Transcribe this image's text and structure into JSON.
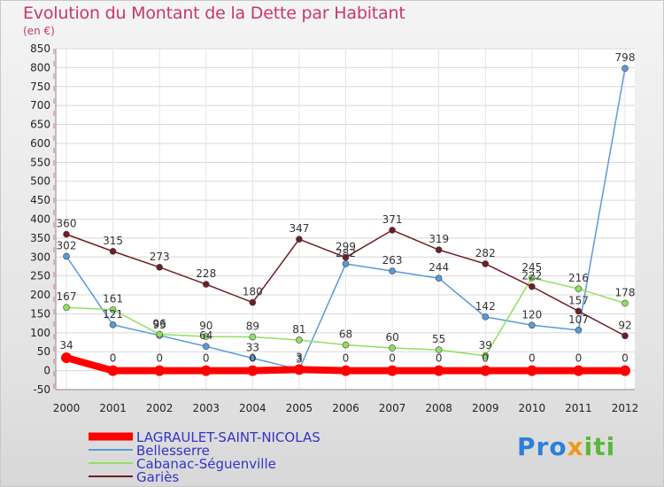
{
  "title": "Evolution du Montant de la Dette par Habitant",
  "unit": "(en €)",
  "brand": [
    "Pro",
    "x",
    "iti"
  ],
  "colors": {
    "title": "#c8376e",
    "legend_text": "#3333cc"
  },
  "chart_data": {
    "type": "line",
    "title": "Evolution du Montant de la Dette par Habitant",
    "ylabel": "(en €)",
    "xlabel": "",
    "x": [
      "2000",
      "2001",
      "2002",
      "2003",
      "2004",
      "2005",
      "2006",
      "2007",
      "2008",
      "2009",
      "2010",
      "2011",
      "2012"
    ],
    "ylim": [
      -50,
      850
    ],
    "yticks": [
      -50,
      0,
      50,
      100,
      150,
      200,
      250,
      300,
      350,
      400,
      450,
      500,
      550,
      600,
      650,
      700,
      750,
      800,
      850
    ],
    "grid": true,
    "legend_position": "bottom-left",
    "series": [
      {
        "name": "LAGRAULET-SAINT-NICOLAS",
        "color": "#ff0000",
        "width": 8,
        "marker_r": 6,
        "values": [
          34,
          0,
          0,
          0,
          0,
          3,
          0,
          0,
          0,
          0,
          0,
          0,
          0
        ],
        "labels": [
          "34",
          "0",
          "0",
          "0",
          "0",
          "3",
          "0",
          "0",
          "0",
          "0",
          "0",
          "0",
          "0"
        ]
      },
      {
        "name": "Bellesserre",
        "color": "#5a9ad8",
        "width": 1.5,
        "marker_r": 3.5,
        "values": [
          302,
          121,
          93,
          64,
          33,
          3,
          282,
          263,
          244,
          142,
          120,
          107,
          798
        ],
        "labels": [
          "302",
          "121",
          "93",
          "64",
          "33",
          "3",
          "282",
          "263",
          "244",
          "142",
          "120",
          "107",
          "798"
        ]
      },
      {
        "name": "Cabanac-Séguenville",
        "color": "#90e060",
        "width": 1.5,
        "marker_r": 3.5,
        "values": [
          167,
          161,
          96,
          90,
          89,
          81,
          68,
          60,
          55,
          39,
          245,
          216,
          178
        ],
        "labels": [
          "167",
          "161",
          "96",
          "90",
          "89",
          "81",
          "68",
          "60",
          "55",
          "39",
          "245",
          "216",
          "178"
        ]
      },
      {
        "name": "Gariès",
        "color": "#6e1e24",
        "width": 1.5,
        "marker_r": 3.5,
        "values": [
          360,
          315,
          273,
          228,
          180,
          347,
          299,
          371,
          319,
          282,
          222,
          157,
          92
        ],
        "labels": [
          "360",
          "315",
          "273",
          "228",
          "180",
          "347",
          "299",
          "371",
          "319",
          "282",
          "222",
          "157",
          "92"
        ]
      }
    ]
  }
}
